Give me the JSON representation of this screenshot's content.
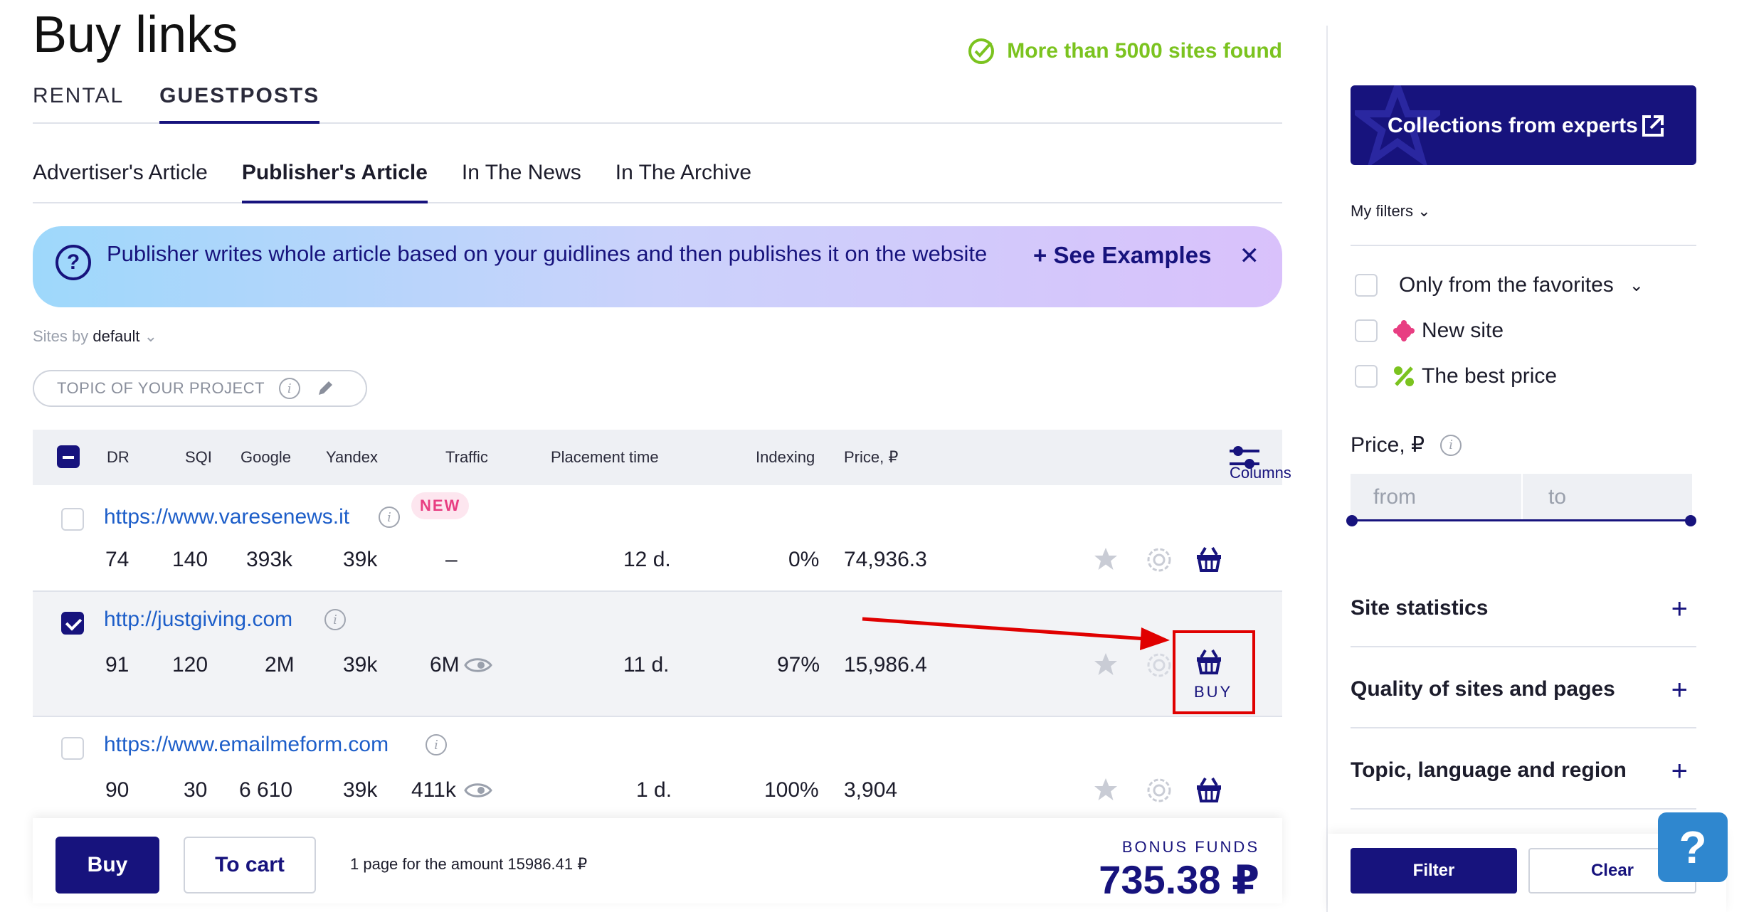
{
  "page": {
    "title": "Buy links",
    "found_text": "More than 5000 sites found"
  },
  "main_tabs": [
    "RENTAL",
    "GUESTPOSTS"
  ],
  "sub_tabs": [
    "Advertiser's Article",
    "Publisher's Article",
    "In The News",
    "In The Archive"
  ],
  "banner": {
    "text": "Publisher writes whole article based on your guidlines and then publishes it on the website",
    "examples": "See Examples",
    "examples_prefix": "+",
    "close": "✕"
  },
  "sort": {
    "prefix": "Sites by",
    "value": "default"
  },
  "topic": {
    "placeholder": "TOPIC OF YOUR PROJECT"
  },
  "table": {
    "headers": [
      "DR",
      "SQI",
      "Google",
      "Yandex",
      "Traffic",
      "Placement time",
      "Indexing",
      "Price, ₽"
    ],
    "columns_label": "Columns",
    "rows": [
      {
        "url": "https://www.varesenews.it",
        "badge": "NEW",
        "dr": "74",
        "sqi": "140",
        "google": "393k",
        "yandex": "39k",
        "traffic": "–",
        "placement": "12 d.",
        "indexing": "0%",
        "price": "74,936.3",
        "selected": false
      },
      {
        "url": "http://justgiving.com",
        "badge": "",
        "dr": "91",
        "sqi": "120",
        "google": "2M",
        "yandex": "39k",
        "traffic": "6M",
        "placement": "11 d.",
        "indexing": "97%",
        "price": "15,986.4",
        "selected": true,
        "buy_label": "BUY"
      },
      {
        "url": "https://www.emailmeform.com",
        "badge": "",
        "dr": "90",
        "sqi": "30",
        "google": "6 610",
        "yandex": "39k",
        "traffic": "411k",
        "placement": "1 d.",
        "indexing": "100%",
        "price": "3,904",
        "selected": false
      }
    ]
  },
  "bottom": {
    "buy": "Buy",
    "to_cart": "To cart",
    "page_amount": "1 page for the amount 15986.41 ₽",
    "bonus_label": "BONUS FUNDS",
    "bonus_value": "735.38 ₽"
  },
  "sidebar": {
    "experts": "Collections from experts",
    "my_filters": "My filters",
    "options": [
      "Only from the favorites",
      "New site",
      "The best price"
    ],
    "price_label": "Price, ₽",
    "from": "from",
    "to": "to",
    "sections": [
      "Site statistics",
      "Quality of sites and pages",
      "Topic, language and region"
    ],
    "filter": "Filter",
    "clear": "Clear"
  },
  "help": "?",
  "colors": {
    "brand": "#17137d",
    "link": "#1d5ec9",
    "success": "#7bc31f",
    "highlight": "#e00000",
    "new_badge": "#e83e82"
  }
}
